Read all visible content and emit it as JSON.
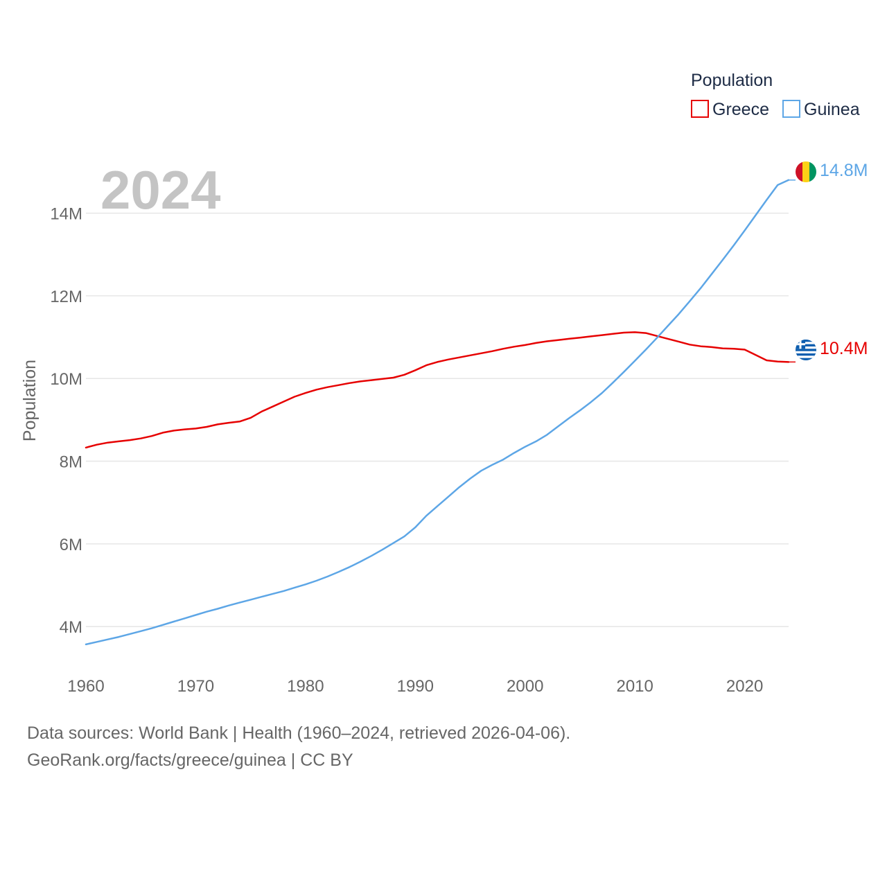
{
  "chart_data": {
    "type": "line",
    "title": "2024",
    "xlabel": "",
    "ylabel": "Population",
    "xlim": [
      1960,
      2024
    ],
    "ylim": [
      3400000,
      15300000
    ],
    "x_ticks": [
      1960,
      1970,
      1980,
      1990,
      2000,
      2010,
      2020
    ],
    "y_ticks": [
      {
        "value": 4000000,
        "label": "4M"
      },
      {
        "value": 6000000,
        "label": "6M"
      },
      {
        "value": 8000000,
        "label": "8M"
      },
      {
        "value": 10000000,
        "label": "10M"
      },
      {
        "value": 12000000,
        "label": "12M"
      },
      {
        "value": 14000000,
        "label": "14M"
      }
    ],
    "grid": true,
    "legend": {
      "title": "Population",
      "position": "top-right"
    },
    "x": [
      1960,
      1961,
      1962,
      1963,
      1964,
      1965,
      1966,
      1967,
      1968,
      1969,
      1970,
      1971,
      1972,
      1973,
      1974,
      1975,
      1976,
      1977,
      1978,
      1979,
      1980,
      1981,
      1982,
      1983,
      1984,
      1985,
      1986,
      1987,
      1988,
      1989,
      1990,
      1991,
      1992,
      1993,
      1994,
      1995,
      1996,
      1997,
      1998,
      1999,
      2000,
      2001,
      2002,
      2003,
      2004,
      2005,
      2006,
      2007,
      2008,
      2009,
      2010,
      2011,
      2012,
      2013,
      2014,
      2015,
      2016,
      2017,
      2018,
      2019,
      2020,
      2021,
      2022,
      2023,
      2024
    ],
    "series": [
      {
        "name": "Greece",
        "color": "#e60000",
        "end_label": "10.4M",
        "flag": "greece-flag-icon",
        "values": [
          8330000,
          8400000,
          8450000,
          8480000,
          8510000,
          8550000,
          8610000,
          8690000,
          8740000,
          8770000,
          8790000,
          8830000,
          8890000,
          8930000,
          8960000,
          9050000,
          9200000,
          9320000,
          9440000,
          9560000,
          9650000,
          9730000,
          9790000,
          9840000,
          9890000,
          9930000,
          9960000,
          9990000,
          10020000,
          10090000,
          10200000,
          10320000,
          10400000,
          10460000,
          10510000,
          10560000,
          10610000,
          10660000,
          10720000,
          10770000,
          10810000,
          10860000,
          10900000,
          10930000,
          10960000,
          10990000,
          11020000,
          11050000,
          11080000,
          11110000,
          11120000,
          11100000,
          11030000,
          10960000,
          10890000,
          10820000,
          10780000,
          10760000,
          10730000,
          10720000,
          10700000,
          10570000,
          10440000,
          10410000,
          10400000
        ]
      },
      {
        "name": "Guinea",
        "color": "#5da6e6",
        "end_label": "14.8M",
        "flag": "guinea-flag-icon",
        "values": [
          3570000,
          3630000,
          3690000,
          3750000,
          3820000,
          3890000,
          3960000,
          4040000,
          4120000,
          4200000,
          4280000,
          4360000,
          4430000,
          4510000,
          4580000,
          4650000,
          4720000,
          4790000,
          4860000,
          4940000,
          5020000,
          5110000,
          5210000,
          5320000,
          5440000,
          5570000,
          5710000,
          5860000,
          6020000,
          6180000,
          6400000,
          6680000,
          6910000,
          7140000,
          7370000,
          7580000,
          7770000,
          7910000,
          8040000,
          8200000,
          8350000,
          8480000,
          8640000,
          8840000,
          9040000,
          9230000,
          9430000,
          9650000,
          9900000,
          10160000,
          10430000,
          10700000,
          10980000,
          11270000,
          11560000,
          11870000,
          12190000,
          12530000,
          12870000,
          13220000,
          13580000,
          13950000,
          14320000,
          14680000,
          14800000
        ]
      }
    ]
  },
  "footer": {
    "source_line": "Data sources: World Bank | Health (1960–2024, retrieved 2026-04-06).",
    "credit_line": "GeoRank.org/facts/greece/guinea | CC BY"
  }
}
